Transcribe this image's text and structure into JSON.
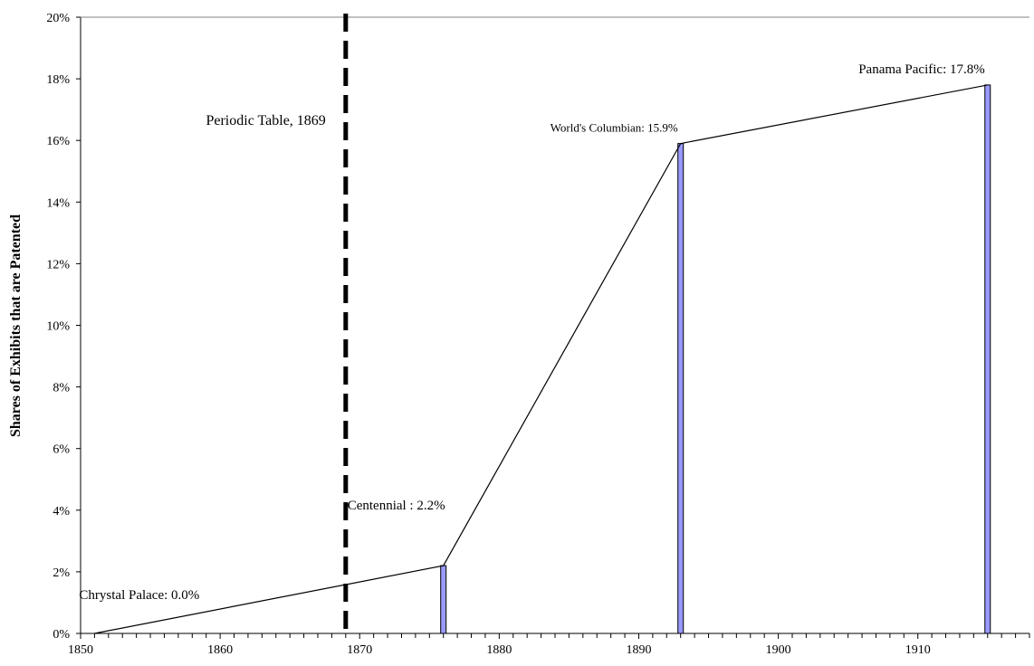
{
  "chart_data": {
    "type": "bar",
    "title": "",
    "xlabel": "",
    "ylabel": "Shares of Exhibits that are Patented",
    "xlim": [
      1850,
      1918
    ],
    "ylim": [
      0,
      20
    ],
    "x_ticks": [
      1850,
      1860,
      1870,
      1880,
      1890,
      1900,
      1910
    ],
    "y_ticks": [
      0,
      2,
      4,
      6,
      8,
      10,
      12,
      14,
      16,
      18,
      20
    ],
    "y_tick_labels": [
      "0%",
      "2%",
      "4%",
      "6%",
      "8%",
      "10%",
      "12%",
      "14%",
      "16%",
      "18%",
      "20%"
    ],
    "grid": false,
    "bar_color": "#9999ff",
    "line_color": "#000000",
    "points": [
      {
        "x": 1851,
        "y": 0.0,
        "label": "Chrystal Palace: 0.0%"
      },
      {
        "x": 1876,
        "y": 2.2,
        "label": "Centennial : 2.2%"
      },
      {
        "x": 1893,
        "y": 15.9,
        "label": "World's Columbian: 15.9%"
      },
      {
        "x": 1915,
        "y": 17.8,
        "label": "Panama Pacific: 17.8%"
      }
    ],
    "reference_line": {
      "x": 1869,
      "label": "Periodic Table, 1869",
      "style": "dashed"
    }
  }
}
